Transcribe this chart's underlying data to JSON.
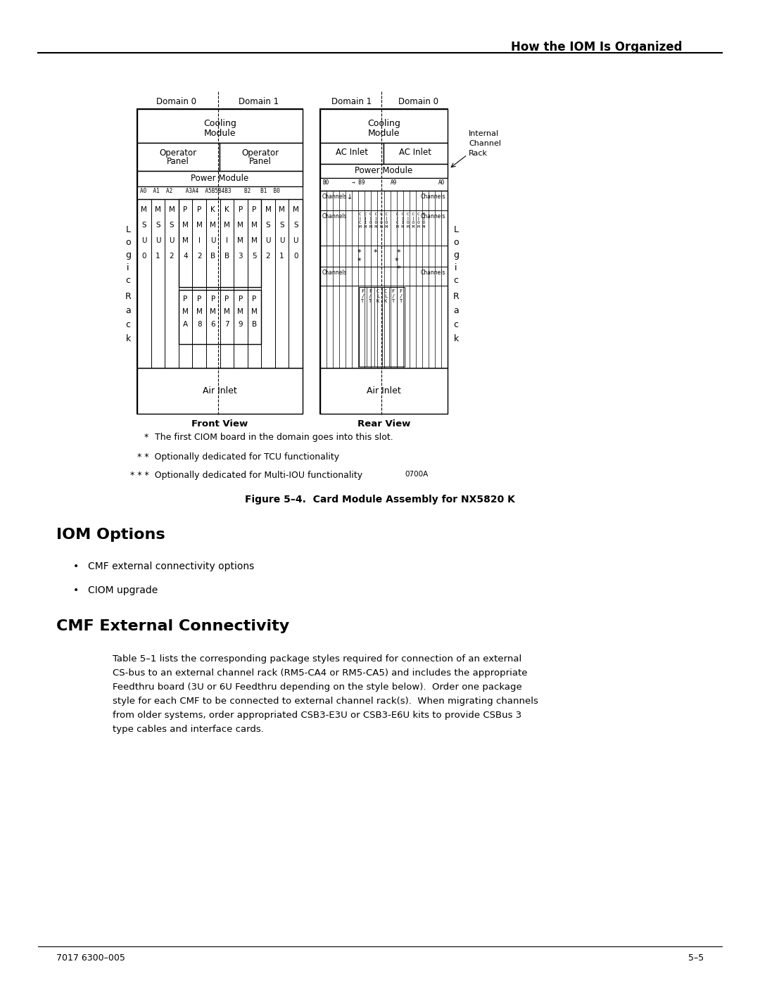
{
  "page_title": "How the IOM Is Organized",
  "fig_caption": "Figure 5–4.  Card Module Assembly for NX5820 K",
  "note1_text": "The first CIOM board in the domain goes into this slot.",
  "note2_text": "* *  Optionally dedicated for TCU functionality",
  "note3_text": "* * *  Optionally dedicated for Multi-IOU functionality",
  "note3_code": "0700A",
  "section1_title": "IOM Options",
  "bullet1": "CMF external connectivity options",
  "bullet2": "CIOM upgrade",
  "section2_title": "CMF External Connectivity",
  "body_lines": [
    "Table 5–1 lists the corresponding package styles required for connection of an external",
    "CS-bus to an external channel rack (RM5-CA4 or RM5-CA5) and includes the appropriate",
    "Feedthru board (3U or 6U Feedthru depending on the style below).  Order one package",
    "style for each CMF to be connected to external channel rack(s).  When migrating channels",
    "from older systems, order appropriated CSB3-E3U or CSB3-E6U kits to provide CSBus 3",
    "type cables and interface cards."
  ],
  "footer_left": "7017 6300–005",
  "footer_right": "5–5",
  "bg_color": "#ffffff"
}
